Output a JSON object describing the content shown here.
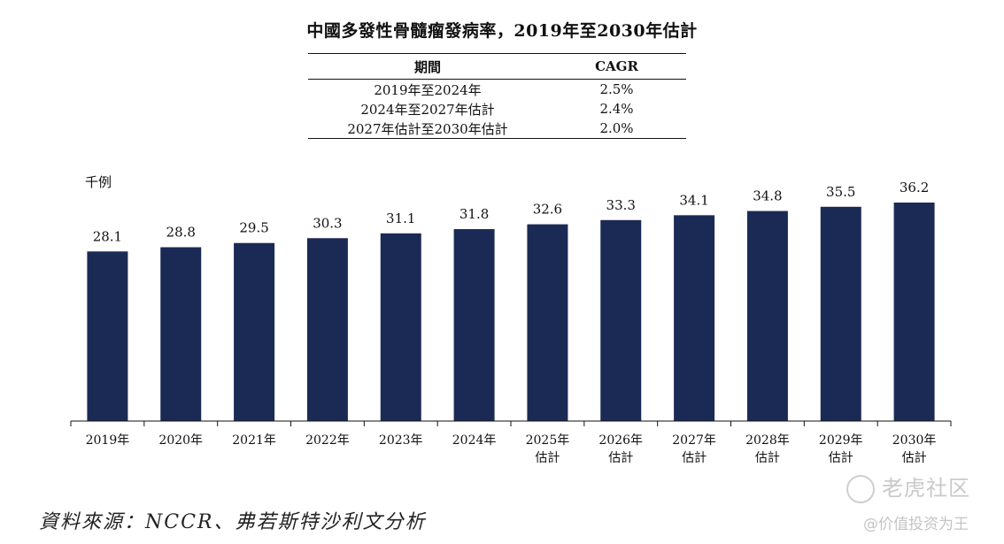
{
  "title": "中國多發性骨髓瘤發病率，2019年至2030年估計",
  "cagr_table": {
    "headers": [
      "期間",
      "CAGR"
    ],
    "rows": [
      [
        "2019年至2024年",
        "2.5%"
      ],
      [
        "2024年至2027年估計",
        "2.4%"
      ],
      [
        "2027年估計至2030年估計",
        "2.0%"
      ]
    ]
  },
  "chart_data": {
    "type": "bar",
    "title": "中國多發性骨髓瘤發病率，2019年至2030年估計",
    "ylabel": "千例",
    "xlabel": "",
    "categories": [
      "2019年",
      "2020年",
      "2021年",
      "2022年",
      "2023年",
      "2024年",
      "2025年\n估計",
      "2026年\n估計",
      "2027年\n估計",
      "2028年\n估計",
      "2029年\n估計",
      "2030年\n估計"
    ],
    "values": [
      28.1,
      28.8,
      29.5,
      30.3,
      31.1,
      31.8,
      32.6,
      33.3,
      34.1,
      34.8,
      35.5,
      36.2
    ],
    "ylim": [
      0,
      36.2
    ],
    "grid": false,
    "bar_color": "#1b2a55"
  },
  "source": "資料來源：NCCR、弗若斯特沙利文分析",
  "watermark": {
    "brand": "老虎社区",
    "handle": "@价值投资为王",
    "logo_icon": "tiger-logo-icon"
  }
}
